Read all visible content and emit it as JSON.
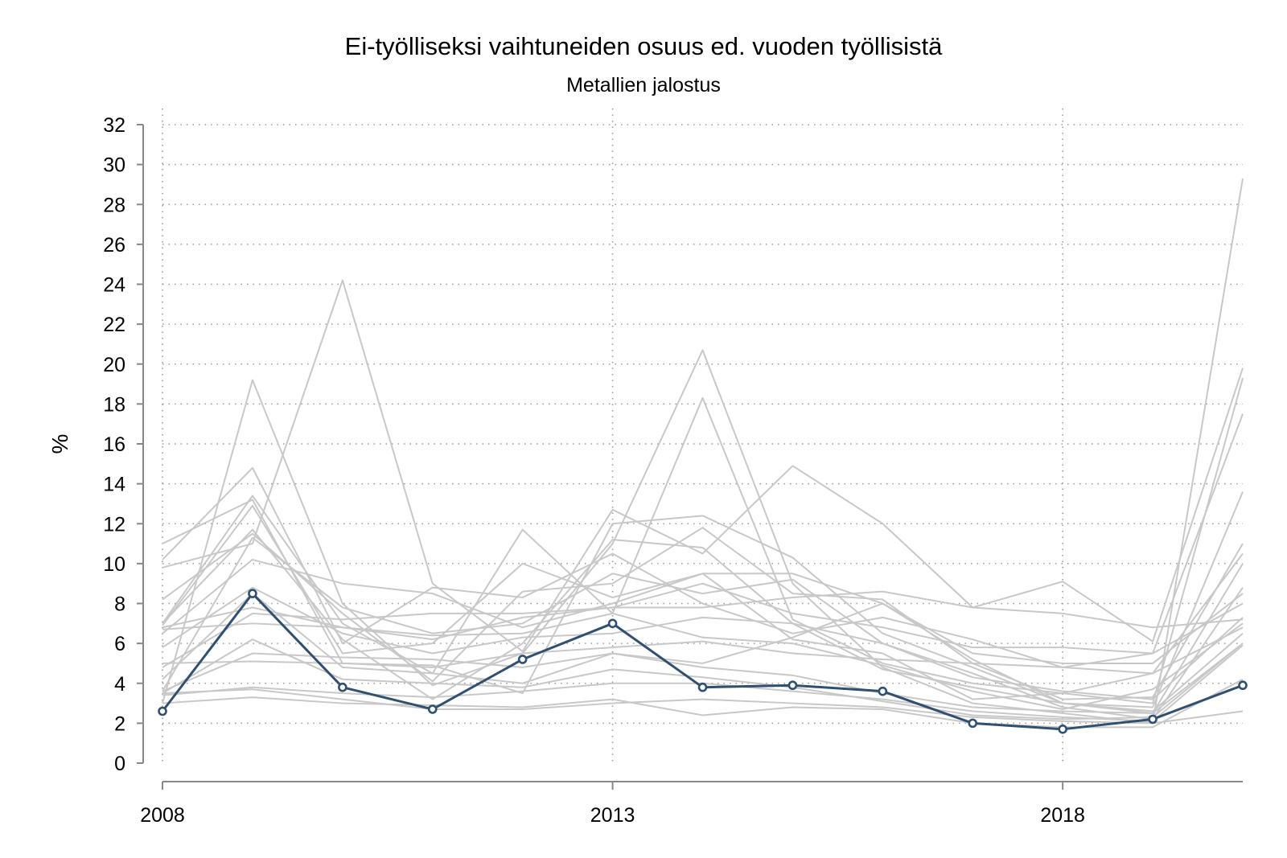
{
  "chart_data": {
    "type": "line",
    "title": "Ei-työlliseksi vaihtuneiden osuus ed. vuoden työllisistä",
    "subtitle": "Metallien jalostus",
    "ylabel": "%",
    "xlabel": "",
    "xlim": [
      2008,
      2020
    ],
    "ylim": [
      0,
      32
    ],
    "x_ticks": [
      "2008",
      "2013",
      "2018"
    ],
    "y_ticks": [
      "0",
      "2",
      "4",
      "6",
      "8",
      "10",
      "12",
      "14",
      "16",
      "18",
      "20",
      "22",
      "24",
      "26",
      "28",
      "30",
      "32"
    ],
    "grid": true,
    "legend": "none",
    "x": [
      2008,
      2009,
      2010,
      2011,
      2012,
      2013,
      2014,
      2015,
      2016,
      2017,
      2018,
      2019,
      2020
    ],
    "highlight_series": {
      "values": [
        2.6,
        8.5,
        3.8,
        2.7,
        5.2,
        7.0,
        3.8,
        3.9,
        3.6,
        2.0,
        1.7,
        2.2,
        3.9
      ],
      "color": "#2f5071"
    },
    "background_series_color": "#c8c8c8",
    "background_series": [
      [
        3.0,
        19.2,
        8.0,
        3.9,
        5.5,
        11.0,
        20.7,
        9.0,
        4.8,
        3.0,
        2.5,
        2.0,
        29.3
      ],
      [
        9.8,
        11.0,
        24.2,
        9.0,
        5.6,
        12.7,
        10.5,
        14.9,
        12.0,
        7.8,
        9.1,
        6.1,
        19.8
      ],
      [
        7.0,
        13.4,
        7.0,
        4.5,
        11.7,
        7.5,
        18.3,
        7.2,
        5.0,
        4.0,
        3.5,
        3.0,
        19.3
      ],
      [
        10.2,
        14.8,
        6.0,
        8.8,
        8.3,
        10.5,
        8.0,
        6.5,
        7.3,
        6.2,
        4.8,
        5.5,
        17.5
      ],
      [
        11.0,
        13.2,
        5.0,
        4.9,
        3.5,
        12.0,
        12.4,
        10.3,
        6.5,
        4.8,
        3.0,
        2.8,
        13.6
      ],
      [
        8.2,
        11.5,
        7.5,
        4.1,
        8.6,
        9.0,
        11.8,
        8.5,
        8.2,
        5.0,
        3.2,
        3.3,
        11.0
      ],
      [
        6.9,
        12.9,
        5.5,
        6.0,
        10.0,
        8.3,
        9.5,
        6.2,
        5.5,
        3.2,
        3.5,
        4.5,
        10.5
      ],
      [
        7.0,
        11.7,
        6.2,
        3.2,
        6.0,
        11.2,
        10.8,
        7.0,
        4.7,
        3.8,
        3.0,
        2.5,
        10.0
      ],
      [
        3.6,
        11.3,
        7.8,
        6.5,
        7.0,
        9.5,
        8.5,
        9.2,
        6.0,
        4.5,
        2.8,
        2.2,
        8.8
      ],
      [
        6.5,
        10.2,
        9.0,
        8.5,
        6.8,
        8.0,
        9.5,
        9.5,
        8.0,
        5.5,
        5.0,
        5.0,
        8.5
      ],
      [
        6.8,
        7.8,
        6.8,
        6.2,
        7.3,
        7.8,
        9.0,
        7.5,
        6.8,
        5.8,
        5.8,
        5.5,
        8.0
      ],
      [
        5.8,
        8.8,
        6.5,
        5.5,
        6.3,
        6.5,
        7.3,
        7.0,
        6.0,
        4.3,
        3.6,
        3.2,
        7.3
      ],
      [
        4.8,
        7.5,
        7.2,
        7.5,
        7.5,
        7.8,
        7.8,
        8.3,
        8.6,
        7.8,
        7.5,
        6.8,
        7.2
      ],
      [
        6.7,
        7.0,
        6.8,
        6.4,
        6.5,
        7.5,
        6.3,
        6.0,
        4.9,
        3.6,
        2.7,
        3.7,
        7.0
      ],
      [
        5.0,
        5.1,
        5.0,
        4.8,
        5.5,
        5.8,
        6.1,
        5.5,
        5.2,
        5.0,
        4.8,
        4.5,
        6.8
      ],
      [
        3.6,
        5.5,
        5.3,
        5.2,
        4.8,
        5.5,
        5.0,
        6.3,
        8.0,
        5.2,
        3.0,
        2.6,
        6.5
      ],
      [
        4.2,
        8.5,
        4.8,
        4.5,
        4.0,
        5.5,
        4.8,
        4.4,
        3.5,
        2.8,
        2.6,
        2.5,
        6.0
      ],
      [
        3.5,
        6.2,
        4.2,
        4.0,
        3.8,
        4.7,
        4.3,
        3.8,
        3.1,
        2.4,
        2.2,
        2.3,
        6.0
      ],
      [
        3.4,
        3.8,
        3.5,
        3.3,
        3.6,
        4.0,
        4.0,
        3.6,
        3.2,
        2.6,
        2.3,
        2.1,
        5.9
      ],
      [
        3.0,
        3.3,
        3.0,
        2.9,
        2.8,
        3.2,
        2.4,
        2.8,
        2.7,
        2.0,
        1.8,
        1.8,
        4.2
      ],
      [
        3.5,
        3.7,
        3.2,
        2.7,
        2.7,
        3.0,
        3.2,
        3.0,
        2.8,
        2.3,
        2.1,
        2.0,
        2.6
      ]
    ]
  }
}
